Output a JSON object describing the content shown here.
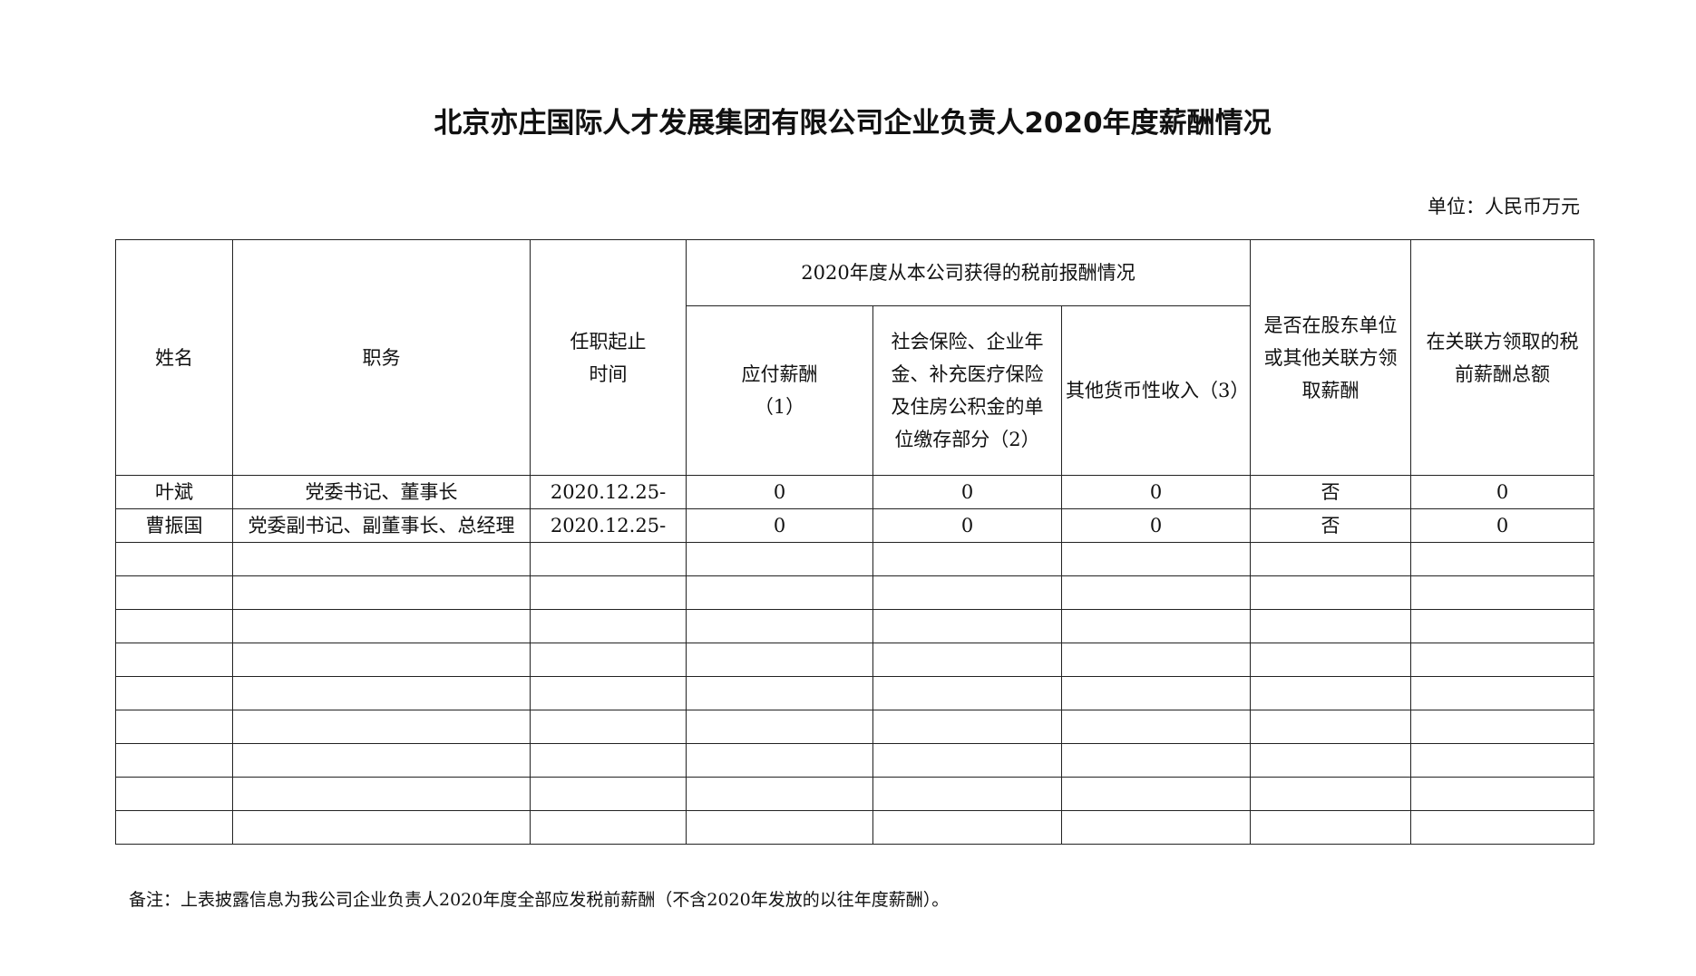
{
  "title": "北京亦庄国际人才发展集团有限公司企业负责人2020年度薪酬情况",
  "unit": "单位：人民币万元",
  "headers": {
    "name": "姓名",
    "position": "职务",
    "term": "任职起止时间",
    "group": "2020年度从本公司获得的税前报酬情况",
    "salary": "应付薪酬（1）",
    "social": "社会保险、企业年金、补充医疗保险及住房公积金的单位缴存部分（2）",
    "other": "其他货币性收入（3）",
    "related": "是否在股东单位或其他关联方领取薪酬",
    "related_total": "在关联方领取的税前薪酬总额"
  },
  "rows": [
    [
      "叶斌",
      "党委书记、董事长",
      "2020.12.25-",
      "0",
      "0",
      "0",
      "否",
      "0"
    ],
    [
      "曹振国",
      "党委副书记、副董事长、总经理",
      "2020.12.25-",
      "0",
      "0",
      "0",
      "否",
      "0"
    ]
  ],
  "note": "备注：上表披露信息为我公司企业负责人2020年度全部应发税前薪酬（不含2020年发放的以往年度薪酬）。"
}
